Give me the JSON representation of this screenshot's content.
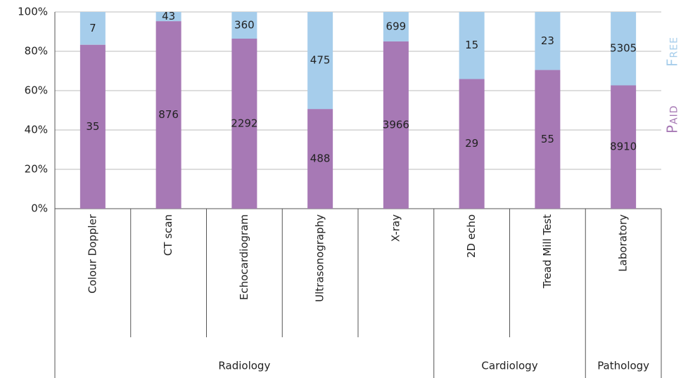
{
  "chart_data": {
    "type": "bar",
    "stacking": "percent",
    "categories": [
      "Colour Doppler",
      "CT scan",
      "Echocardiogram",
      "Ultrasonography",
      "X-ray",
      "2D echo",
      "Tread Mill Test",
      "Laboratory"
    ],
    "groups": [
      {
        "label": "Radiology",
        "span": 5
      },
      {
        "label": "Cardiology",
        "span": 2
      },
      {
        "label": "Pathology",
        "span": 1
      }
    ],
    "series": [
      {
        "name": "Paid",
        "color": "#a779b5",
        "values": [
          35,
          876,
          2292,
          488,
          3966,
          29,
          55,
          8910
        ]
      },
      {
        "name": "Free",
        "color": "#a6cdeb",
        "values": [
          7,
          43,
          360,
          475,
          699,
          15,
          23,
          5305
        ]
      }
    ],
    "ylim": [
      0,
      100
    ],
    "yticks": [
      {
        "value": 0,
        "label": "0%"
      },
      {
        "value": 20,
        "label": "20%"
      },
      {
        "value": 40,
        "label": "40%"
      },
      {
        "value": 60,
        "label": "60%"
      },
      {
        "value": 80,
        "label": "80%"
      },
      {
        "value": 100,
        "label": "100%"
      }
    ],
    "grid": true,
    "legend": "right"
  }
}
